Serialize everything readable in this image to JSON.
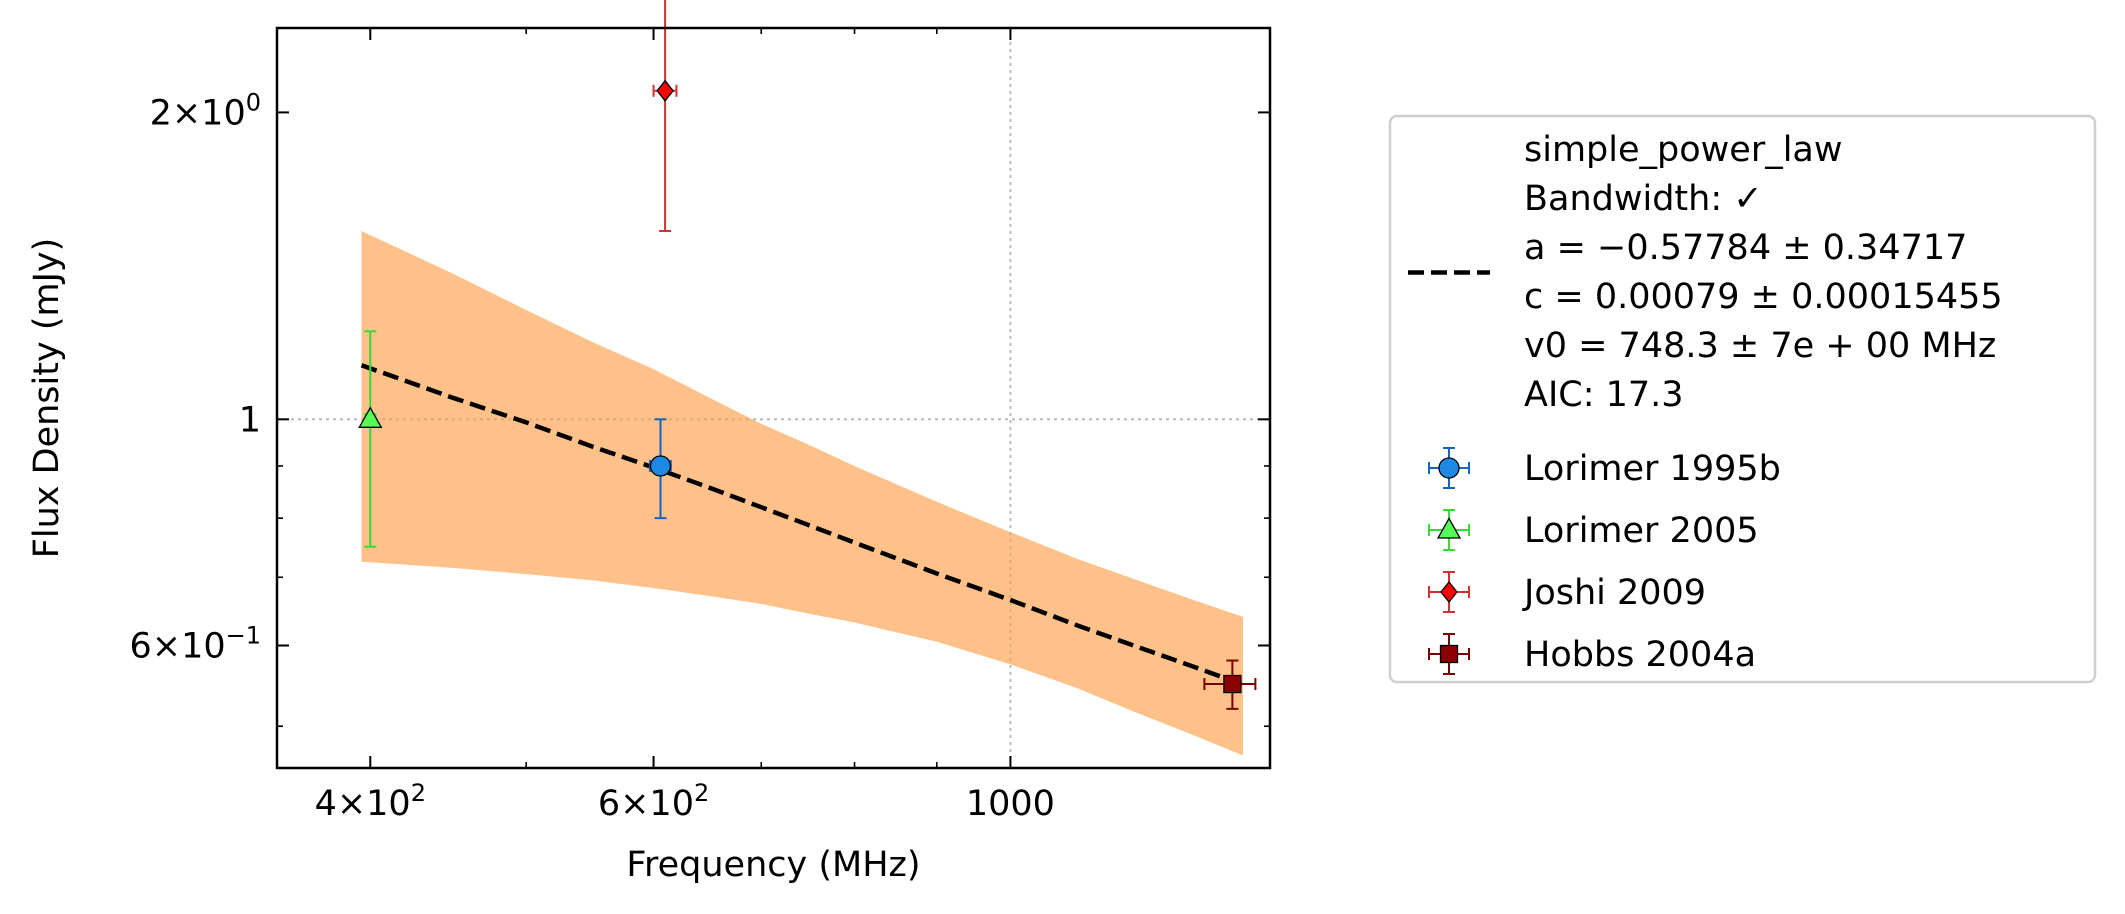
{
  "chart_data": {
    "type": "scatter",
    "xlabel": "Frequency (MHz)",
    "ylabel": "Flux Density (mJy)",
    "xscale": "log",
    "yscale": "log",
    "xlim": [
      350,
      1450
    ],
    "ylim": [
      0.455,
      2.42
    ],
    "grid": "dotted, major ticks only",
    "legend_position": "outside-right",
    "x_ticks": [
      {
        "value": 400,
        "mantissa": "4",
        "base": "10",
        "exp": "2"
      },
      {
        "value": 600,
        "mantissa": "6",
        "base": "10",
        "exp": "2"
      },
      {
        "value": 1000,
        "plain": "1000"
      }
    ],
    "y_ticks": [
      {
        "value": 2,
        "mantissa": "2",
        "base": "10",
        "exp": "0"
      },
      {
        "value": 1,
        "plain": "1"
      },
      {
        "value": 0.6,
        "mantissa": "6",
        "base": "10",
        "exp": "−1"
      }
    ],
    "fit": {
      "model": "simple_power_law",
      "legend_lines": [
        "simple_power_law",
        "Bandwidth: ✓",
        "a = −0.57784 ± 0.34717",
        "c = 0.00079 ± 0.00015455",
        "v0 = 748.3 ± 7e + 00 MHz",
        "AIC: 17.3"
      ],
      "line_color": "#000000",
      "band_color": "#ffa04c",
      "band_opacity": 0.65,
      "x": [
        395,
        450,
        500,
        550,
        600,
        650,
        700,
        748.3,
        800,
        900,
        1000,
        1100,
        1200,
        1300,
        1395
      ],
      "y": [
        1.13,
        1.05,
        0.993,
        0.94,
        0.897,
        0.857,
        0.82,
        0.788,
        0.757,
        0.706,
        0.665,
        0.628,
        0.598,
        0.572,
        0.549
      ],
      "band_upper": [
        1.53,
        1.39,
        1.28,
        1.19,
        1.12,
        1.05,
        0.99,
        0.945,
        0.9,
        0.83,
        0.775,
        0.73,
        0.695,
        0.665,
        0.64
      ],
      "band_lower": [
        0.725,
        0.715,
        0.705,
        0.695,
        0.683,
        0.671,
        0.659,
        0.645,
        0.632,
        0.605,
        0.575,
        0.545,
        0.515,
        0.49,
        0.468
      ]
    },
    "series": [
      {
        "name": "Lorimer 1995b",
        "marker": "circle",
        "color": "#1565c0",
        "fill": "#1e88e5",
        "points": [
          {
            "x": 606,
            "y": 0.9,
            "yerr_low": 0.8,
            "yerr_high": 1.0,
            "xerr_low": 597,
            "xerr_high": 615
          }
        ]
      },
      {
        "name": "Lorimer 2005",
        "marker": "triangle",
        "color": "#33dd33",
        "fill": "#55ff55",
        "points": [
          {
            "x": 400,
            "y": 1.0,
            "yerr_low": 0.75,
            "yerr_high": 1.22,
            "xerr_low": 397,
            "xerr_high": 403
          }
        ]
      },
      {
        "name": "Joshi 2009",
        "marker": "diamond",
        "color": "#d32f2f",
        "fill": "#ff0000",
        "points": [
          {
            "x": 610,
            "y": 2.1,
            "yerr_low": 1.53,
            "yerr_high": 2.67,
            "xerr_low": 600,
            "xerr_high": 620
          }
        ]
      },
      {
        "name": "Hobbs 2004a",
        "marker": "square",
        "color": "#7b0000",
        "fill": "#8b0000",
        "points": [
          {
            "x": 1374,
            "y": 0.55,
            "yerr_low": 0.52,
            "yerr_high": 0.58,
            "xerr_low": 1320,
            "xerr_high": 1420
          }
        ]
      }
    ]
  }
}
